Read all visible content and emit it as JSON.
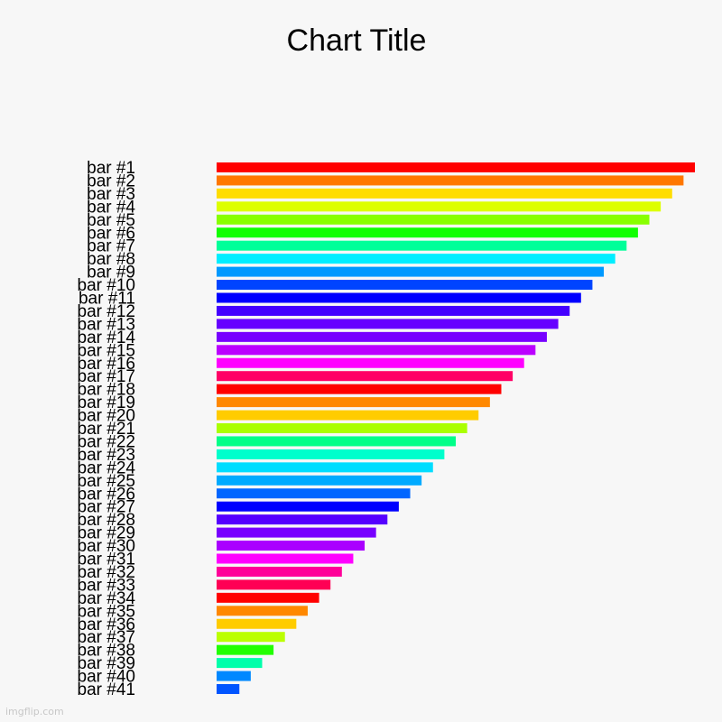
{
  "chart_data": {
    "type": "bar",
    "orientation": "horizontal",
    "title": "Chart Title",
    "xlabel": "",
    "ylabel": "",
    "grid": false,
    "categories": [
      "bar #1",
      "bar #2",
      "bar #3",
      "bar #4",
      "bar #5",
      "bar #6",
      "bar #7",
      "bar #8",
      "bar #9",
      "bar #10",
      "bar #11",
      "bar #12",
      "bar #13",
      "bar #14",
      "bar #15",
      "bar #16",
      "bar #17",
      "bar #18",
      "bar #19",
      "bar #20",
      "bar #21",
      "bar #22",
      "bar #23",
      "bar #24",
      "bar #25",
      "bar #26",
      "bar #27",
      "bar #28",
      "bar #29",
      "bar #30",
      "bar #31",
      "bar #32",
      "bar #33",
      "bar #34",
      "bar #35",
      "bar #36",
      "bar #37",
      "bar #38",
      "bar #39",
      "bar #40",
      "bar #41"
    ],
    "values": [
      42,
      41,
      40,
      39,
      38,
      37,
      36,
      35,
      34,
      33,
      32,
      31,
      30,
      29,
      28,
      27,
      26,
      25,
      24,
      23,
      22,
      21,
      20,
      19,
      18,
      17,
      16,
      15,
      14,
      13,
      12,
      11,
      10,
      9,
      8,
      7,
      6,
      5,
      4,
      3,
      2
    ],
    "xlim": [
      0,
      42
    ],
    "colors": [
      "#ff0000",
      "#ff7700",
      "#ffdd00",
      "#ddff00",
      "#88ff00",
      "#11ff00",
      "#00ff99",
      "#00eeff",
      "#0099ff",
      "#0044ff",
      "#0000ff",
      "#4400ff",
      "#6600ff",
      "#7700ff",
      "#bb00ff",
      "#ff00ff",
      "#ff0066",
      "#ff0000",
      "#ff8800",
      "#ffcc00",
      "#aaff00",
      "#00ff88",
      "#00ffcc",
      "#00ddff",
      "#00aaff",
      "#0066ff",
      "#0000ff",
      "#5500ff",
      "#7700ff",
      "#aa00ff",
      "#ff00ff",
      "#ff0099",
      "#ff0055",
      "#ff0000",
      "#ff8800",
      "#ffcc00",
      "#bbff00",
      "#22ff00",
      "#00ffaa",
      "#0088ff",
      "#0055ff"
    ]
  },
  "watermark": "imgflip.com"
}
